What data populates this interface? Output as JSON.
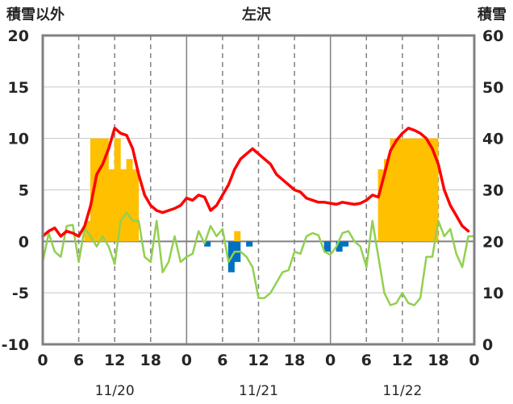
{
  "chart_data": {
    "type": "bar+line",
    "title": "左沢",
    "left_axis": {
      "label": "積雪以外",
      "ylim": [
        -10,
        20
      ],
      "ticks": [
        -10,
        -5,
        0,
        5,
        10,
        15,
        20
      ]
    },
    "right_axis": {
      "label": "積雪",
      "ylim": [
        0,
        60
      ],
      "ticks": [
        0,
        10,
        20,
        30,
        40,
        50,
        60
      ]
    },
    "x_axis": {
      "xlim": [
        0,
        72
      ],
      "tick_values": [
        0,
        6,
        12,
        18,
        24,
        30,
        36,
        42,
        48,
        54,
        60,
        66,
        72
      ],
      "tick_labels": [
        "0",
        "6",
        "12",
        "18",
        "0",
        "6",
        "12",
        "18",
        "0",
        "6",
        "12",
        "18",
        "0"
      ],
      "day_labels": [
        {
          "x": 12,
          "label": "11/20"
        },
        {
          "x": 36,
          "label": "11/21"
        },
        {
          "x": 60,
          "label": "11/22"
        }
      ],
      "day_separators": [
        24,
        48
      ],
      "dashed_gridlines": [
        6,
        12,
        18,
        30,
        36,
        42,
        54,
        60,
        66
      ]
    },
    "colors": {
      "snowfall_positive": "#ffc000",
      "snowfall_negative": "#0070c0",
      "red_line": "#ff0000",
      "green_line": "#92d050",
      "snow_depth_line": "#7030a0",
      "frame": "#808080"
    },
    "bars_snowfall": [
      {
        "x": 7,
        "value": 2
      },
      {
        "x": 8,
        "value": 10
      },
      {
        "x": 9,
        "value": 10
      },
      {
        "x": 10,
        "value": 10
      },
      {
        "x": 11,
        "value": 7
      },
      {
        "x": 12,
        "value": 10
      },
      {
        "x": 13,
        "value": 7
      },
      {
        "x": 14,
        "value": 8
      },
      {
        "x": 15,
        "value": 7
      },
      {
        "x": 27,
        "value": -0.5
      },
      {
        "x": 31,
        "value": -3
      },
      {
        "x": 32,
        "value": -2
      },
      {
        "x": 32,
        "value": 1
      },
      {
        "x": 34,
        "value": -0.5
      },
      {
        "x": 47,
        "value": -1
      },
      {
        "x": 49,
        "value": -1
      },
      {
        "x": 50,
        "value": -0.5
      },
      {
        "x": 56,
        "value": 7
      },
      {
        "x": 57,
        "value": 8
      },
      {
        "x": 58,
        "value": 10
      },
      {
        "x": 59,
        "value": 10
      },
      {
        "x": 60,
        "value": 10
      },
      {
        "x": 61,
        "value": 10
      },
      {
        "x": 62,
        "value": 10
      },
      {
        "x": 63,
        "value": 10
      },
      {
        "x": 64,
        "value": 10
      },
      {
        "x": 65,
        "value": 10
      }
    ],
    "series_red": {
      "x": [
        0,
        1,
        2,
        3,
        4,
        5,
        6,
        7,
        8,
        9,
        10,
        11,
        12,
        13,
        14,
        15,
        16,
        17,
        18,
        19,
        20,
        21,
        22,
        23,
        24,
        25,
        26,
        27,
        28,
        29,
        30,
        31,
        32,
        33,
        34,
        35,
        36,
        37,
        38,
        39,
        40,
        41,
        42,
        43,
        44,
        45,
        46,
        47,
        48,
        49,
        50,
        51,
        52,
        53,
        54,
        55,
        56,
        57,
        58,
        59,
        60,
        61,
        62,
        63,
        64,
        65,
        66,
        67,
        68,
        69,
        70,
        71
      ],
      "values": [
        0.5,
        1.0,
        1.3,
        0.5,
        1.0,
        0.8,
        0.5,
        1.5,
        3.5,
        6.5,
        7.5,
        9.0,
        11.0,
        10.5,
        10.3,
        9.0,
        6.5,
        4.5,
        3.5,
        3.0,
        2.8,
        3.0,
        3.2,
        3.5,
        4.2,
        4.0,
        4.5,
        4.3,
        3.0,
        3.5,
        4.5,
        5.5,
        7.0,
        8.0,
        8.5,
        9.0,
        8.5,
        8.0,
        7.5,
        6.5,
        6.0,
        5.5,
        5.0,
        4.8,
        4.2,
        4.0,
        3.8,
        3.8,
        3.7,
        3.6,
        3.8,
        3.7,
        3.6,
        3.7,
        4.0,
        4.5,
        4.3,
        6.5,
        8.8,
        9.8,
        10.5,
        11.0,
        10.8,
        10.5,
        10.0,
        9.0,
        7.5,
        5.0,
        3.5,
        2.5,
        1.5,
        1.0
      ]
    },
    "series_green": {
      "x": [
        0,
        1,
        2,
        3,
        4,
        5,
        6,
        7,
        8,
        9,
        10,
        11,
        12,
        13,
        14,
        15,
        16,
        17,
        18,
        19,
        20,
        21,
        22,
        23,
        24,
        25,
        26,
        27,
        28,
        29,
        30,
        31,
        32,
        33,
        34,
        35,
        36,
        37,
        38,
        39,
        40,
        41,
        42,
        43,
        44,
        45,
        46,
        47,
        48,
        49,
        50,
        51,
        52,
        53,
        54,
        55,
        56,
        57,
        58,
        59,
        60,
        61,
        62,
        63,
        64,
        65,
        66,
        67,
        68,
        69,
        70,
        71,
        72
      ],
      "values": [
        -2.0,
        0.8,
        -1.0,
        -1.5,
        1.5,
        1.6,
        -2.0,
        1.3,
        0.5,
        -0.5,
        0.5,
        -0.5,
        -2.2,
        2.0,
        2.8,
        2.0,
        2.0,
        -1.5,
        -2.0,
        2.0,
        -3.0,
        -2.0,
        0.5,
        -2.0,
        -1.5,
        -1.2,
        1.0,
        -0.2,
        1.5,
        0.5,
        1.2,
        -2.0,
        -1.0,
        -1.0,
        -1.5,
        -2.5,
        -5.5,
        -5.5,
        -5.0,
        -4.0,
        -3.0,
        -2.8,
        -1.0,
        -1.2,
        0.5,
        0.8,
        0.6,
        -1.0,
        -1.3,
        -0.5,
        0.8,
        1.0,
        0.0,
        -0.5,
        -2.5,
        2.0,
        -1.5,
        -5.0,
        -6.2,
        -6.0,
        -5.0,
        -6.0,
        -6.2,
        -5.5,
        -1.5,
        -1.5,
        2.0,
        0.5,
        1.2,
        -1.2,
        -2.5,
        0.5,
        0.5
      ]
    },
    "series_snow_depth": {
      "axis": "right",
      "x": [
        0,
        72
      ],
      "values": [
        0,
        0
      ]
    }
  }
}
